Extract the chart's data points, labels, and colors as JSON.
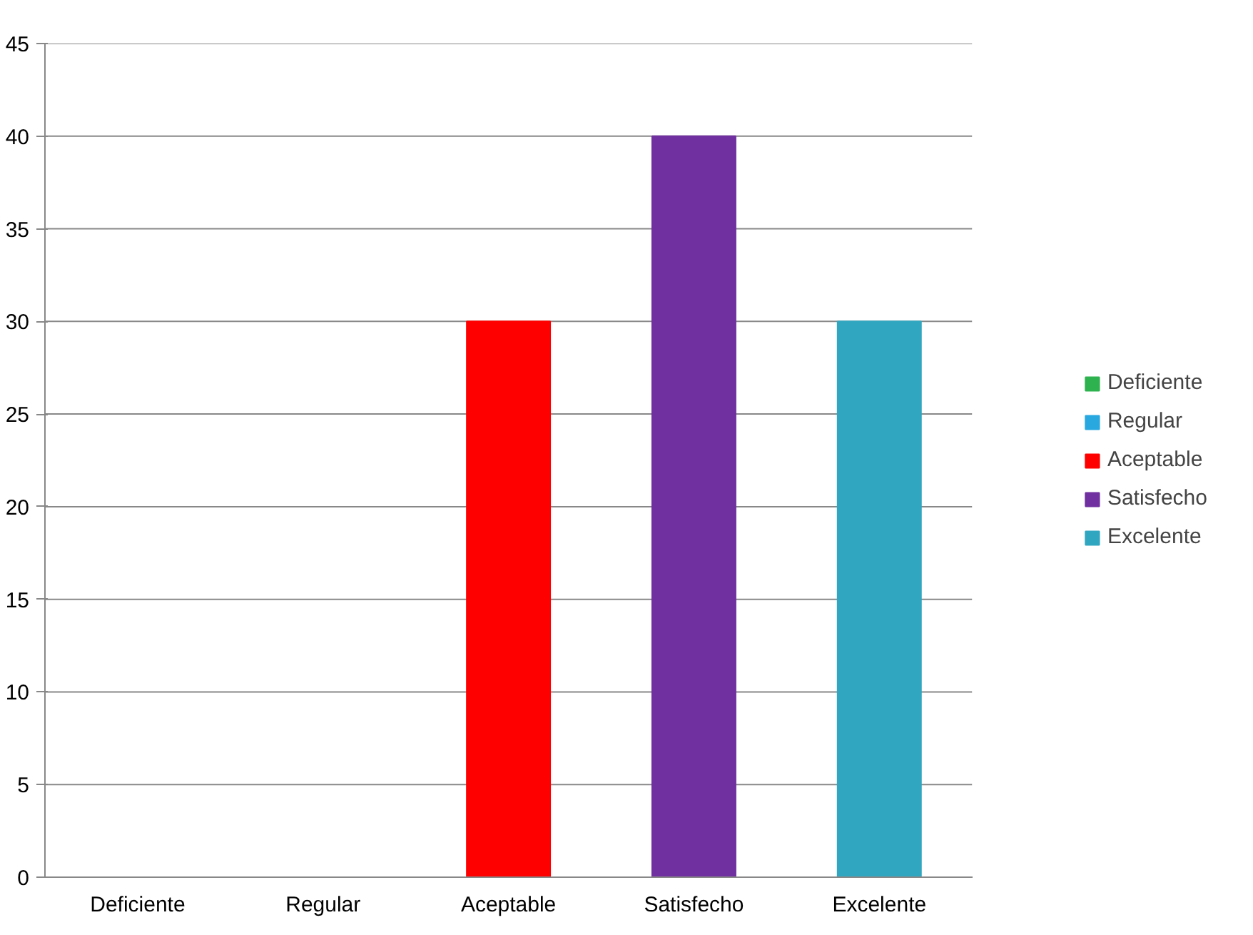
{
  "chart_data": {
    "type": "bar",
    "categories": [
      "Deficiente",
      "Regular",
      "Aceptable",
      "Satisfecho",
      "Excelente"
    ],
    "series": [
      {
        "name": "Deficiente",
        "color": "#2eb24f",
        "values": [
          0,
          null,
          null,
          null,
          null
        ]
      },
      {
        "name": "Regular",
        "color": "#29a8e0",
        "values": [
          null,
          0,
          null,
          null,
          null
        ]
      },
      {
        "name": "Aceptable",
        "color": "#ff0000",
        "values": [
          null,
          null,
          30,
          null,
          null
        ]
      },
      {
        "name": "Satisfecho",
        "color": "#7030a0",
        "values": [
          null,
          null,
          null,
          40,
          null
        ]
      },
      {
        "name": "Excelente",
        "color": "#31a6c0",
        "values": [
          null,
          null,
          null,
          null,
          30
        ]
      }
    ],
    "ylim": [
      0,
      45
    ],
    "yticks": [
      0,
      5,
      10,
      15,
      20,
      25,
      30,
      35,
      40,
      45
    ],
    "grid": "y",
    "legend": "right"
  }
}
